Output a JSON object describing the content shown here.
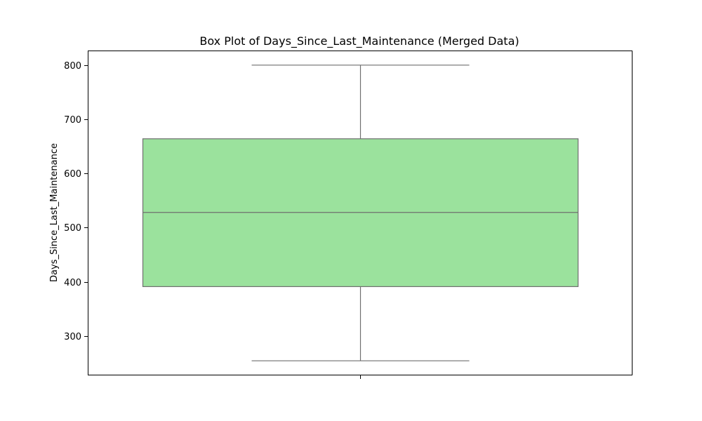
{
  "chart_data": {
    "type": "box",
    "title": "Box Plot of Days_Since_Last_Maintenance (Merged Data)",
    "xlabel": "",
    "ylabel": "Days_Since_Last_Maintenance",
    "ylim": [
      227,
      827
    ],
    "yticks": [
      300,
      400,
      500,
      600,
      700,
      800
    ],
    "grid": false,
    "box": {
      "whisker_low": 254,
      "q1": 391,
      "median": 528,
      "q3": 664,
      "whisker_high": 800
    },
    "colors": {
      "box_fill": "#9be29d",
      "line": "#6f6f6f",
      "frame": "#000000"
    }
  }
}
